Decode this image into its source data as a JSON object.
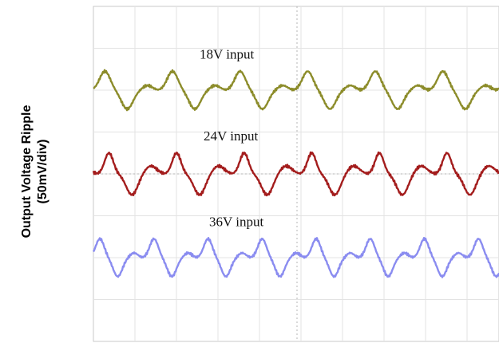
{
  "chart_data": {
    "type": "line",
    "ylabel": [
      "Output Voltage Ripple",
      "(50mV/div)"
    ],
    "xlabel": "",
    "grid": true,
    "vertical_divisions": 8,
    "horizontal_divisions": 10,
    "series": [
      {
        "name": "18V input",
        "color": "#8c8c2a",
        "offset_div": 2.0,
        "amplitude_div": 0.45,
        "cycles": 6,
        "shape": "main-peak-with-shoulder"
      },
      {
        "name": "24V input",
        "color": "#a31c1c",
        "offset_div": 0.0,
        "amplitude_div": 0.5,
        "cycles": 6,
        "shape": "main-peak-with-flat-shoulder"
      },
      {
        "name": "36V input",
        "color": "#8a8cf0",
        "offset_div": -2.0,
        "amplitude_div": 0.45,
        "cycles": 7.5,
        "shape": "main-peak-with-shoulder"
      }
    ]
  }
}
